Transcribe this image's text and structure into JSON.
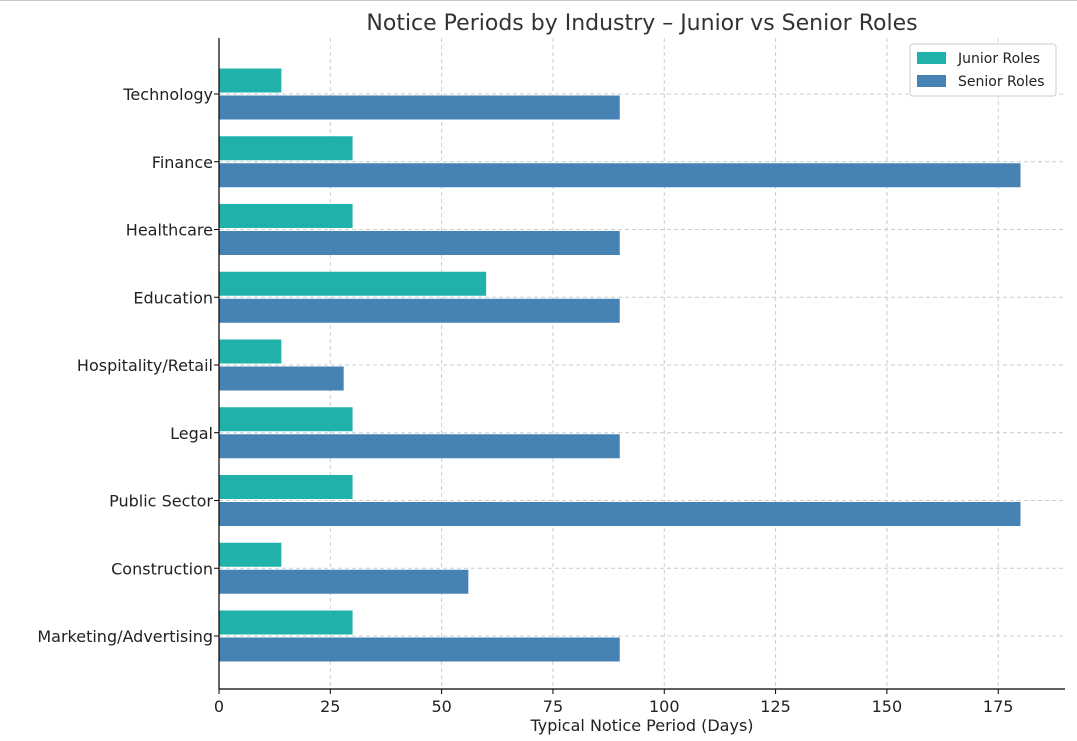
{
  "chart_data": {
    "type": "bar",
    "orientation": "horizontal",
    "title": "Notice Periods by Industry – Junior vs Senior Roles",
    "xlabel": "Typical Notice Period (Days)",
    "ylabel": "",
    "xlim": [
      0,
      190
    ],
    "xticks": [
      0,
      25,
      50,
      75,
      100,
      125,
      150,
      175
    ],
    "grid": true,
    "legend_position": "top-right",
    "categories": [
      "Technology",
      "Finance",
      "Healthcare",
      "Education",
      "Hospitality/Retail",
      "Legal",
      "Public Sector",
      "Construction",
      "Marketing/Advertising"
    ],
    "series": [
      {
        "name": "Junior Roles",
        "color": "#20b2aa",
        "values": [
          14,
          30,
          30,
          60,
          14,
          30,
          30,
          14,
          30
        ]
      },
      {
        "name": "Senior Roles",
        "color": "#4682b4",
        "values": [
          90,
          180,
          90,
          90,
          28,
          90,
          180,
          56,
          90
        ]
      }
    ]
  }
}
